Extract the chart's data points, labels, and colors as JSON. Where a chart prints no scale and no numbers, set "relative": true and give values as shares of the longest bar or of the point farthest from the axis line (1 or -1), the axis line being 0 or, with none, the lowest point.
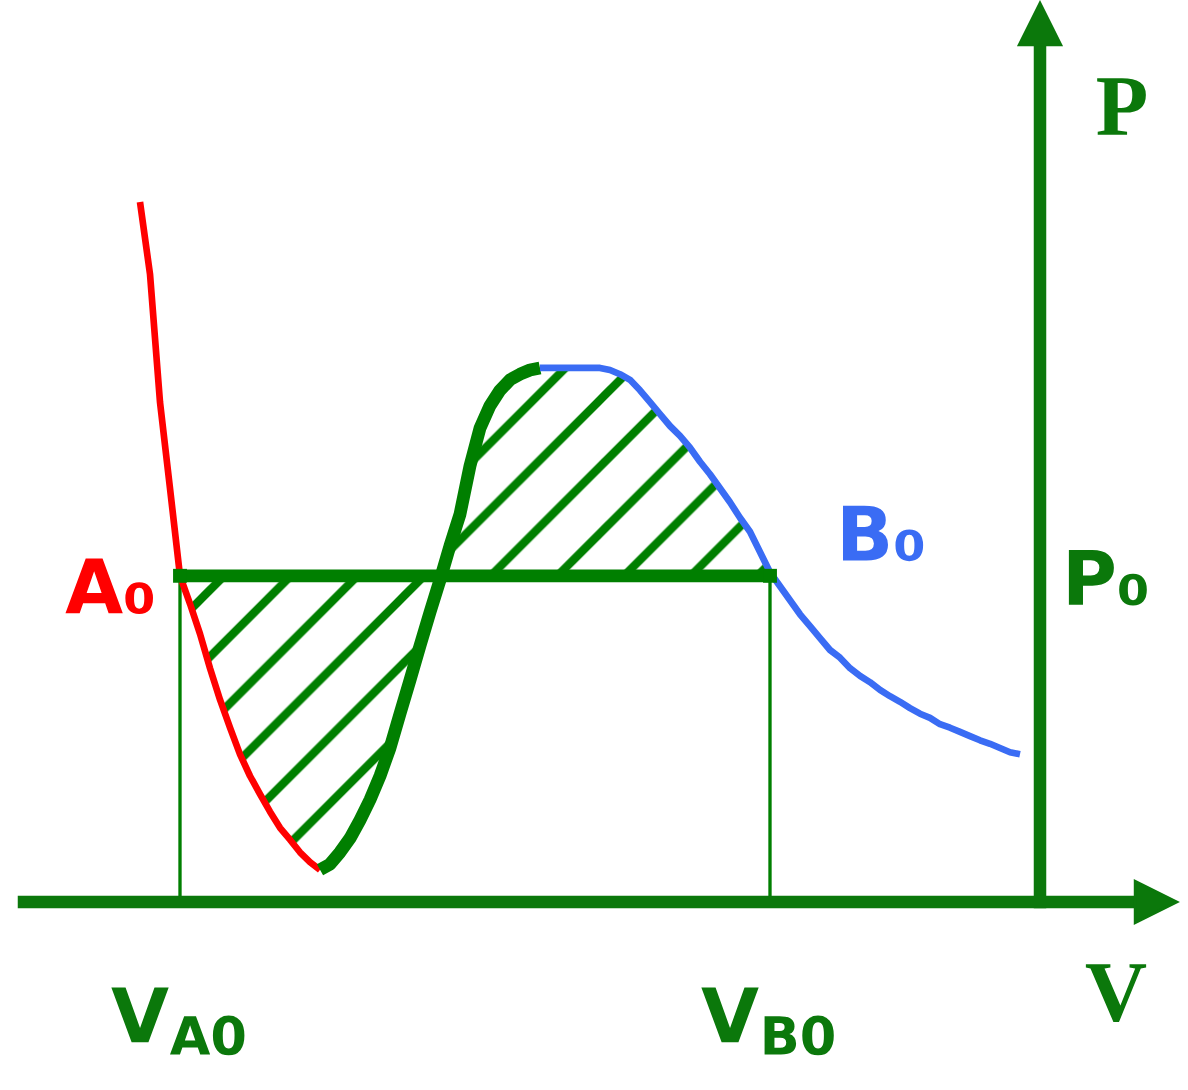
{
  "chart_data": {
    "type": "line",
    "relative": true,
    "xlabel": "V",
    "ylabel": "P",
    "tick_labels": "x",
    "categories": [
      null,
      null,
      null,
      null,
      "V$_{A0}$",
      null,
      null,
      null,
      null,
      null,
      null,
      null,
      null,
      null,
      null,
      null,
      null,
      null,
      null,
      null,
      null,
      null,
      null,
      null,
      null,
      null,
      null,
      null,
      null,
      null,
      null,
      null,
      null,
      null,
      null,
      null,
      null,
      null,
      null,
      null,
      null,
      null,
      null,
      null,
      null,
      null,
      null,
      null,
      null,
      null,
      null,
      null,
      null,
      null,
      null,
      null,
      null,
      null,
      null,
      null,
      null,
      null,
      null,
      "V$_{B0}$",
      null,
      null,
      null,
      null,
      null,
      null,
      null,
      null,
      null,
      null,
      null,
      null,
      null,
      null,
      null,
      null,
      null,
      null,
      null,
      null,
      null,
      null,
      null,
      null,
      null
    ],
    "series": [
      {
        "color": "#ff0000",
        "values": [
          1,
          0.897,
          0.714,
          0.591,
          0.466,
          0.426,
          0.383,
          0.334,
          0.289,
          0.249,
          0.211,
          0.18,
          0.154,
          0.129,
          0.106,
          0.089,
          0.071,
          0.057,
          0.046,
          null,
          null,
          null,
          null,
          null,
          null,
          null,
          null,
          null,
          null,
          null,
          null,
          null,
          null,
          null,
          null,
          null,
          null,
          null,
          null,
          null,
          null,
          null,
          null,
          null,
          null,
          null,
          null,
          null,
          null,
          null,
          null,
          null,
          null,
          null,
          null,
          null,
          null,
          null,
          null,
          null,
          null,
          null,
          null,
          null,
          null,
          null,
          null,
          null,
          null,
          null,
          null,
          null,
          null,
          null,
          null,
          null,
          null,
          null,
          null,
          null,
          null,
          null,
          null,
          null,
          null,
          null,
          null,
          null,
          null
        ]
      },
      {
        "color": "#007f00",
        "values": [
          null,
          null,
          null,
          null,
          null,
          null,
          null,
          null,
          null,
          null,
          null,
          null,
          null,
          null,
          null,
          null,
          null,
          null,
          0.046,
          0.054,
          0.071,
          0.091,
          0.117,
          0.146,
          0.18,
          0.22,
          0.269,
          0.317,
          0.366,
          0.414,
          0.46,
          0.509,
          0.554,
          0.623,
          0.677,
          0.709,
          0.731,
          0.746,
          0.754,
          0.76,
          0.763,
          null,
          null,
          null,
          null,
          null,
          null,
          null,
          null,
          null,
          null,
          null,
          null,
          null,
          null,
          null,
          null,
          null,
          null,
          null,
          null,
          null,
          null,
          null,
          null,
          null,
          null,
          null,
          null,
          null,
          null,
          null,
          null,
          null,
          null,
          null,
          null,
          null,
          null,
          null,
          null,
          null,
          null,
          null,
          null,
          null,
          null,
          null,
          null
        ]
      },
      {
        "color": "#3a6cf4",
        "values": [
          null,
          null,
          null,
          null,
          null,
          null,
          null,
          null,
          null,
          null,
          null,
          null,
          null,
          null,
          null,
          null,
          null,
          null,
          null,
          null,
          null,
          null,
          null,
          null,
          null,
          null,
          null,
          null,
          null,
          null,
          null,
          null,
          null,
          null,
          null,
          null,
          null,
          null,
          null,
          null,
          0.763,
          0.763,
          0.763,
          0.763,
          0.763,
          0.763,
          0.763,
          0.76,
          0.754,
          0.746,
          0.731,
          0.714,
          0.697,
          0.68,
          0.666,
          0.649,
          0.629,
          0.611,
          0.591,
          0.571,
          0.549,
          0.529,
          0.5,
          0.471,
          0.451,
          0.431,
          0.411,
          0.394,
          0.377,
          0.36,
          0.349,
          0.334,
          0.323,
          0.314,
          0.303,
          0.294,
          0.286,
          0.277,
          0.269,
          0.263,
          0.254,
          0.249,
          0.243,
          0.237,
          0.231,
          0.226,
          0.22,
          0.214,
          0.211
        ]
      },
      {
        "color": "#007f00",
        "values": [
          null,
          null,
          null,
          null,
          0.466,
          0.466,
          0.466,
          0.466,
          0.466,
          0.466,
          0.466,
          0.466,
          0.466,
          0.466,
          0.466,
          0.466,
          0.466,
          0.466,
          0.466,
          0.466,
          0.466,
          0.466,
          0.466,
          0.466,
          0.466,
          0.466,
          0.466,
          0.466,
          0.466,
          0.466,
          0.466,
          0.466,
          0.466,
          0.466,
          0.466,
          0.466,
          0.466,
          0.466,
          0.466,
          0.466,
          0.466,
          0.466,
          0.466,
          0.466,
          0.466,
          0.466,
          0.466,
          0.466,
          0.466,
          0.466,
          0.466,
          0.466,
          0.466,
          0.466,
          0.466,
          0.466,
          0.466,
          0.466,
          0.466,
          0.466,
          0.466,
          0.466,
          0.466,
          0.466,
          null,
          null,
          null,
          null,
          null,
          null,
          null,
          null,
          null,
          null,
          null,
          null,
          null,
          null,
          null,
          null,
          null,
          null,
          null,
          null,
          null,
          null,
          null,
          null,
          null
        ],
        "lower": [
          null,
          null,
          null,
          null,
          0.466,
          0.426,
          0.383,
          0.334,
          0.289,
          0.249,
          0.211,
          0.18,
          0.154,
          0.129,
          0.106,
          0.089,
          0.071,
          0.057,
          0.046,
          0.054,
          0.071,
          0.091,
          0.117,
          0.146,
          0.18,
          0.22,
          0.269,
          0.317,
          0.366,
          0.414,
          0.46,
          0.466,
          0.466,
          0.466,
          0.466,
          0.466,
          0.466,
          0.466,
          0.466,
          0.466,
          0.466,
          0.466,
          0.466,
          0.466,
          0.466,
          0.466,
          0.466,
          0.466,
          0.466,
          0.466,
          0.466,
          0.466,
          0.466,
          0.466,
          0.466,
          0.466,
          0.466,
          0.466,
          0.466,
          0.466,
          0.466,
          0.466,
          0.466,
          0.466,
          null,
          null,
          null,
          null,
          null,
          null,
          null,
          null,
          null,
          null,
          null,
          null,
          null,
          null,
          null,
          null,
          null,
          null,
          null,
          null,
          null,
          null,
          null,
          null,
          null
        ],
        "upper": [
          null,
          null,
          null,
          null,
          0.466,
          0.466,
          0.466,
          0.466,
          0.466,
          0.466,
          0.466,
          0.466,
          0.466,
          0.466,
          0.466,
          0.466,
          0.466,
          0.466,
          0.466,
          0.466,
          0.466,
          0.466,
          0.466,
          0.466,
          0.466,
          0.466,
          0.466,
          0.466,
          0.466,
          0.466,
          0.466,
          0.509,
          0.554,
          0.623,
          0.677,
          0.709,
          0.731,
          0.746,
          0.754,
          0.76,
          0.763,
          0.763,
          0.763,
          0.763,
          0.763,
          0.763,
          0.763,
          0.76,
          0.754,
          0.746,
          0.731,
          0.714,
          0.697,
          0.68,
          0.666,
          0.649,
          0.629,
          0.611,
          0.591,
          0.571,
          0.549,
          0.529,
          0.5,
          0.471,
          null,
          null,
          null,
          null,
          null,
          null,
          null,
          null,
          null,
          null,
          null,
          null,
          null,
          null,
          null,
          null,
          null,
          null,
          null,
          null,
          null,
          null,
          null,
          null,
          null
        ]
      },
      {
        "type": "lollipop",
        "color": "#007f00",
        "marker": "square",
        "values": [
          null,
          null,
          null,
          null,
          0.466,
          null,
          null,
          null,
          null,
          null,
          null,
          null,
          null,
          null,
          null,
          null,
          null,
          null,
          null,
          null,
          null,
          null,
          null,
          null,
          null,
          null,
          null,
          null,
          null,
          null,
          null,
          null,
          null,
          null,
          null,
          null,
          null,
          null,
          null,
          null,
          null,
          null,
          null,
          null,
          null,
          null,
          null,
          null,
          null,
          null,
          null,
          null,
          null,
          null,
          null,
          null,
          null,
          null,
          null,
          null,
          null,
          null,
          null,
          0.466,
          null,
          null,
          null,
          null,
          null,
          null,
          null,
          null,
          null,
          null,
          null,
          null,
          null,
          null,
          null,
          null,
          null,
          null,
          null,
          null,
          null,
          null,
          null,
          null,
          null
        ]
      }
    ],
    "ref_lines": [
      {
        "axis": "y",
        "value": 0,
        "color": "#0b780b"
      }
    ],
    "annotations": [
      {
        "text": "A₀",
        "x": "V$_{A0}$",
        "y": 0.466
      },
      {
        "text": "B₀",
        "x": "V$_{B0}$",
        "y": 0.466
      },
      "P₀"
    ]
  }
}
